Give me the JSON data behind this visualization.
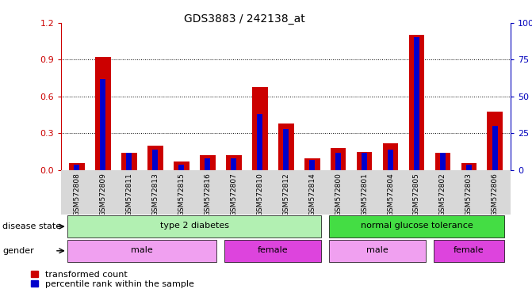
{
  "title": "GDS3883 / 242138_at",
  "samples": [
    "GSM572808",
    "GSM572809",
    "GSM572811",
    "GSM572813",
    "GSM572815",
    "GSM572816",
    "GSM572807",
    "GSM572810",
    "GSM572812",
    "GSM572814",
    "GSM572800",
    "GSM572801",
    "GSM572804",
    "GSM572805",
    "GSM572802",
    "GSM572803",
    "GSM572806"
  ],
  "red_values": [
    0.06,
    0.92,
    0.14,
    0.2,
    0.07,
    0.12,
    0.12,
    0.68,
    0.38,
    0.1,
    0.18,
    0.15,
    0.22,
    1.1,
    0.14,
    0.06,
    0.48
  ],
  "blue_values": [
    4,
    62,
    12,
    14,
    4,
    8,
    8,
    38,
    28,
    7,
    12,
    12,
    14,
    90,
    12,
    4,
    30
  ],
  "ylim_left": [
    0,
    1.2
  ],
  "ylim_right": [
    0,
    100
  ],
  "yticks_left": [
    0,
    0.3,
    0.6,
    0.9,
    1.2
  ],
  "yticks_right": [
    0,
    25,
    50,
    75,
    100
  ],
  "disease_state_groups": [
    {
      "label": "type 2 diabetes",
      "start": 0,
      "end": 9,
      "color": "#b2f0b2"
    },
    {
      "label": "normal glucose tolerance",
      "start": 10,
      "end": 16,
      "color": "#44dd44"
    }
  ],
  "gender_groups": [
    {
      "label": "male",
      "start": 0,
      "end": 5,
      "color": "#f0a0f0"
    },
    {
      "label": "female",
      "start": 6,
      "end": 9,
      "color": "#dd44dd"
    },
    {
      "label": "male",
      "start": 10,
      "end": 13,
      "color": "#f0a0f0"
    },
    {
      "label": "female",
      "start": 14,
      "end": 16,
      "color": "#dd44dd"
    }
  ],
  "bar_width": 0.6,
  "red_color": "#CC0000",
  "blue_color": "#0000CC",
  "left_axis_color": "#CC0000",
  "right_axis_color": "#0000BB",
  "xtick_bg_color": "#d8d8d8"
}
